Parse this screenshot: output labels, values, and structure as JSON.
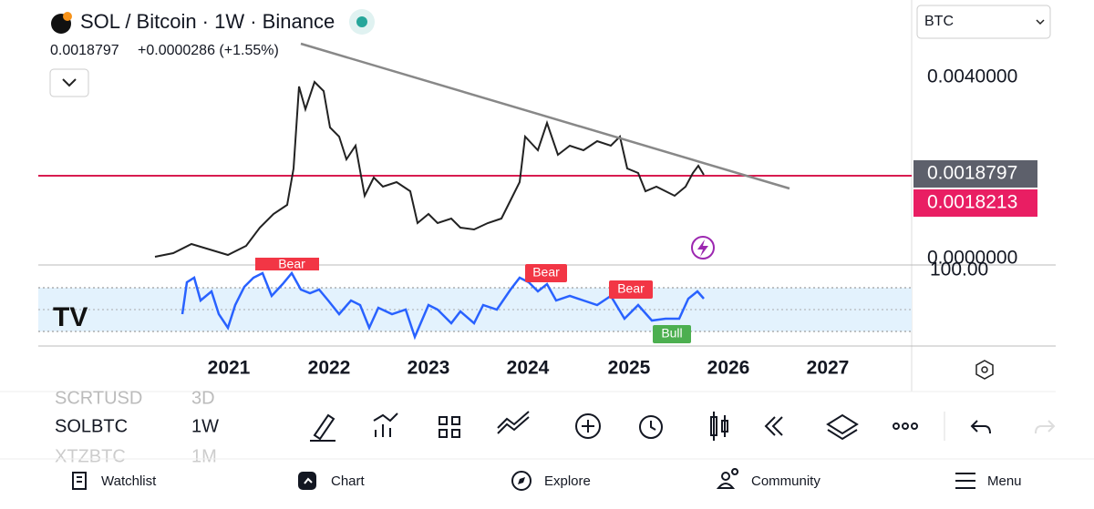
{
  "header": {
    "symbol": "SOL / Bitcoin · 1W · Binance",
    "price": "0.0018797",
    "change": "+0.0000286 (+1.55%)",
    "currency": "BTC"
  },
  "price_axis": {
    "labels": [
      "0.0040000",
      "0.0018797",
      "0.0018213",
      "0.0000000"
    ]
  },
  "rsi_axis": {
    "label": "100.00"
  },
  "rsi_signals": [
    "Bear",
    "Bear",
    "Bear",
    "Bull"
  ],
  "time_axis": {
    "labels": [
      "2021",
      "2022",
      "2023",
      "2024",
      "2025",
      "2026",
      "2027"
    ]
  },
  "watchlist": {
    "rows": [
      [
        "SCRTUSD",
        "3D"
      ],
      [
        "SOLBTC",
        "1W"
      ],
      [
        "XTZBTC",
        "1M"
      ]
    ]
  },
  "nav": {
    "items": [
      "Watchlist",
      "Chart",
      "Explore",
      "Community",
      "Menu"
    ]
  }
}
